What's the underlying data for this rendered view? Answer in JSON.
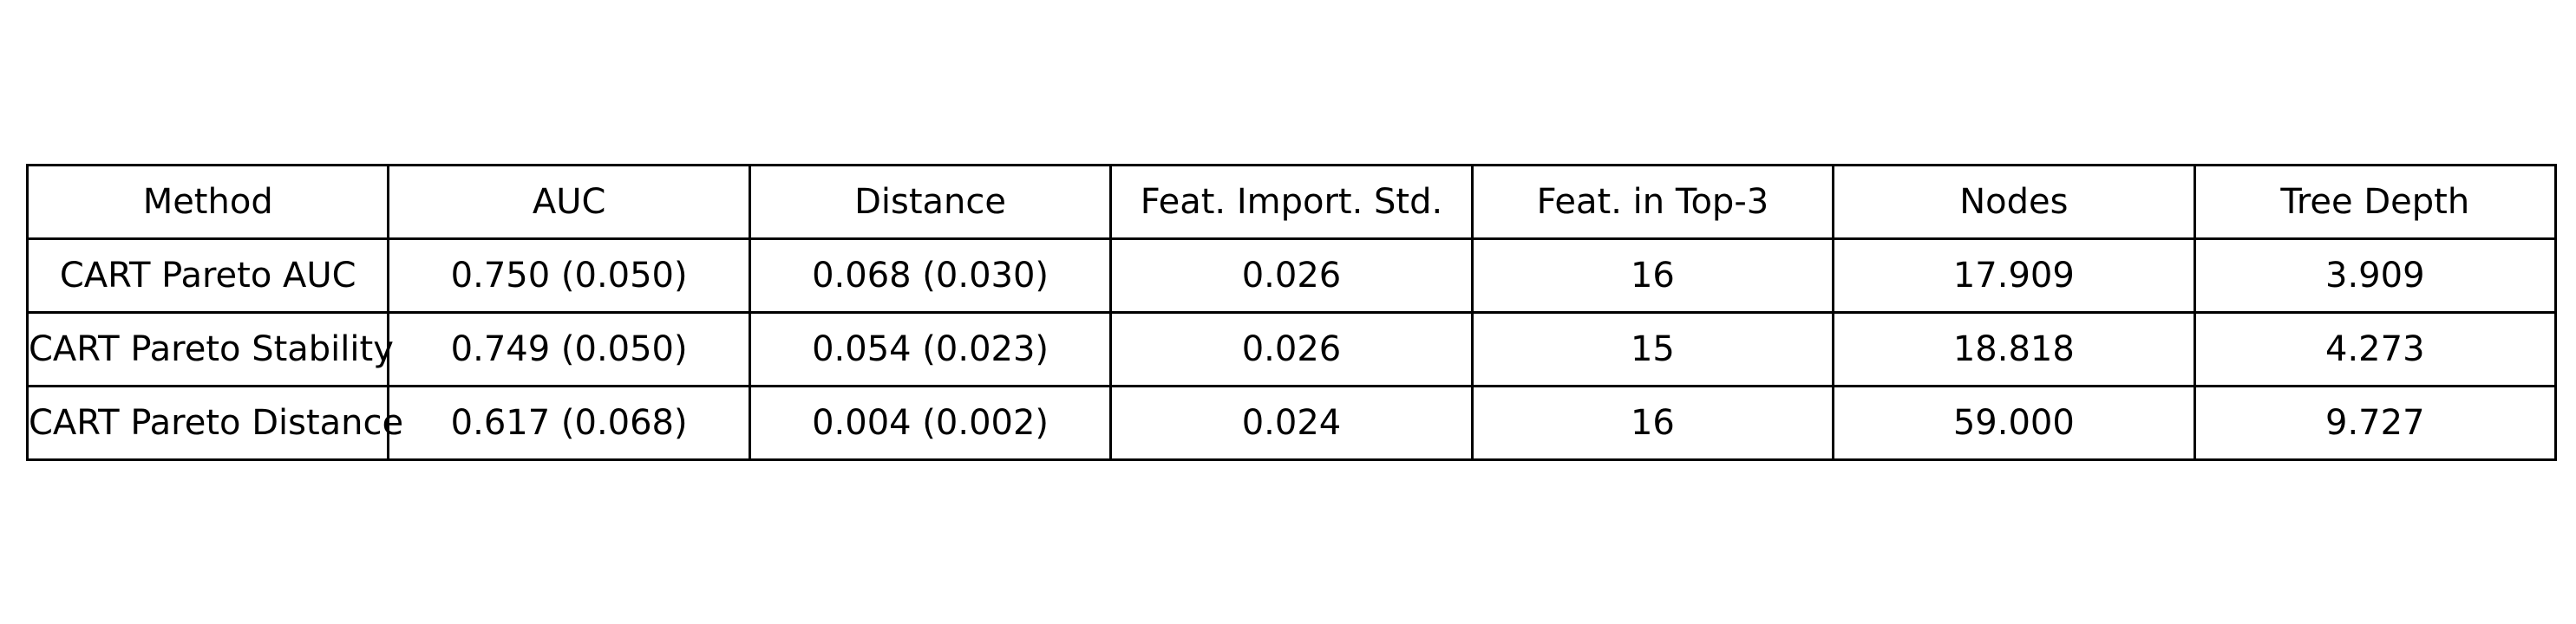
{
  "chart_data": {
    "type": "table",
    "columns": [
      "Method",
      "AUC",
      "Distance",
      "Feat. Import. Std.",
      "Feat. in Top-3",
      "Nodes",
      "Tree Depth"
    ],
    "rows": [
      [
        "CART Pareto AUC",
        "0.750 (0.050)",
        "0.068 (0.030)",
        "0.026",
        "16",
        "17.909",
        "3.909"
      ],
      [
        "CART Pareto Stability",
        "0.749 (0.050)",
        "0.054 (0.023)",
        "0.026",
        "15",
        "18.818",
        "4.273"
      ],
      [
        "CART Pareto Distance",
        "0.617 (0.068)",
        "0.004 (0.002)",
        "0.024",
        "16",
        "59.000",
        "9.727"
      ]
    ]
  }
}
